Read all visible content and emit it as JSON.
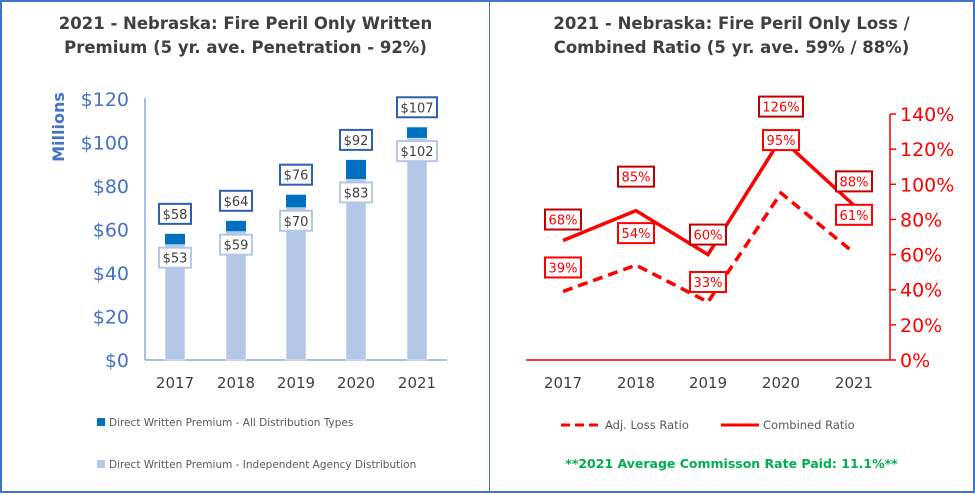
{
  "chart_data": [
    {
      "type": "bar",
      "title": "2021 - Nebraska: Fire Peril Only Written Premium (5 yr. ave. Penetration - 92%)",
      "title_lines": [
        "2021 - Nebraska: Fire Peril Only Written",
        "Premium (5 yr. ave. Penetration - 92%)"
      ],
      "ylabel": "Millions",
      "ylim": [
        0,
        120
      ],
      "yticks": [
        "$0",
        "$20",
        "$40",
        "$60",
        "$80",
        "$100",
        "$120"
      ],
      "categories": [
        "2017",
        "2018",
        "2019",
        "2020",
        "2021"
      ],
      "series": [
        {
          "name": "Direct Written Premium - All Distribution Types",
          "values": [
            58,
            64,
            76,
            92,
            107
          ],
          "labels": [
            "$58",
            "$64",
            "$76",
            "$92",
            "$107"
          ],
          "color": "#0070c0"
        },
        {
          "name": "Direct Written Premium - Independent Agency Distribution",
          "values": [
            53,
            59,
            70,
            83,
            102
          ],
          "labels": [
            "$53",
            "$59",
            "$70",
            "$83",
            "$102"
          ],
          "color": "#b4c7e7"
        }
      ],
      "legend": "bottom",
      "grid": false
    },
    {
      "type": "line",
      "title": "2021 - Nebraska: Fire Peril Only Loss / Combined Ratio (5 yr. ave. 59% / 88%)",
      "title_lines": [
        "2021 - Nebraska: Fire Peril Only Loss /",
        "Combined Ratio (5 yr. ave.  59% / 88%)"
      ],
      "ylim": [
        0,
        140
      ],
      "yticks": [
        "0%",
        "20%",
        "40%",
        "60%",
        "80%",
        "100%",
        "120%",
        "140%"
      ],
      "y_axis_side": "right",
      "categories": [
        "2017",
        "2018",
        "2019",
        "2020",
        "2021"
      ],
      "series": [
        {
          "name": "Adj. Loss Ratio",
          "values": [
            39,
            54,
            33,
            95,
            61
          ],
          "labels": [
            "39%",
            "54%",
            "33%",
            "95%",
            "61%"
          ],
          "style": "dashed",
          "color": "#ff0000"
        },
        {
          "name": "Combined Ratio",
          "values": [
            68,
            85,
            60,
            126,
            88
          ],
          "labels": [
            "68%",
            "85%",
            "60%",
            "126%",
            "88%"
          ],
          "style": "solid",
          "color": "#ff0000"
        }
      ],
      "legend": "bottom",
      "grid": false,
      "note": "**2021 Average Commisson Rate Paid: 11.1%**"
    }
  ]
}
